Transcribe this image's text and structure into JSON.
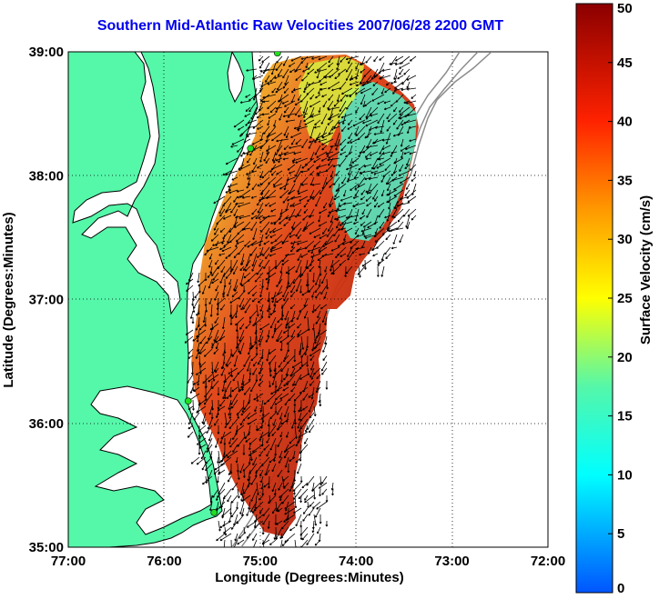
{
  "title": "Southern Mid-Atlantic Raw Velocities 2007/06/28 2200 GMT",
  "chart_data": {
    "type": "heatmap",
    "xlabel": "Longitude (Degrees:Minutes)",
    "ylabel": "Latitude (Degrees:Minutes)",
    "x_ticks": [
      "77:00",
      "76:00",
      "75:00",
      "74:00",
      "73:00",
      "72:00"
    ],
    "y_ticks": [
      "39:00",
      "38:00",
      "37:00",
      "36:00",
      "35:00"
    ],
    "xlim": [
      -77,
      -72
    ],
    "ylim": [
      35,
      39
    ],
    "grid": true,
    "colorbar": {
      "label": "Surface Velocity (cm/s)",
      "range": [
        0,
        50
      ],
      "ticks": [
        "0",
        "5",
        "10",
        "15",
        "20",
        "25",
        "30",
        "35",
        "40",
        "45",
        "50"
      ]
    },
    "stations": [
      {
        "lon": -74.82,
        "lat": 38.99
      },
      {
        "lon": -75.1,
        "lat": 38.22
      },
      {
        "lon": -75.75,
        "lat": 36.18
      },
      {
        "lon": -75.48,
        "lat": 35.28
      }
    ],
    "colors": {
      "land": "#55f7a9",
      "water": "#ffffff",
      "coast": "#000000",
      "bathymetry": "#8c8c8c",
      "station": "#22dd22",
      "arrows": "#000000"
    }
  }
}
